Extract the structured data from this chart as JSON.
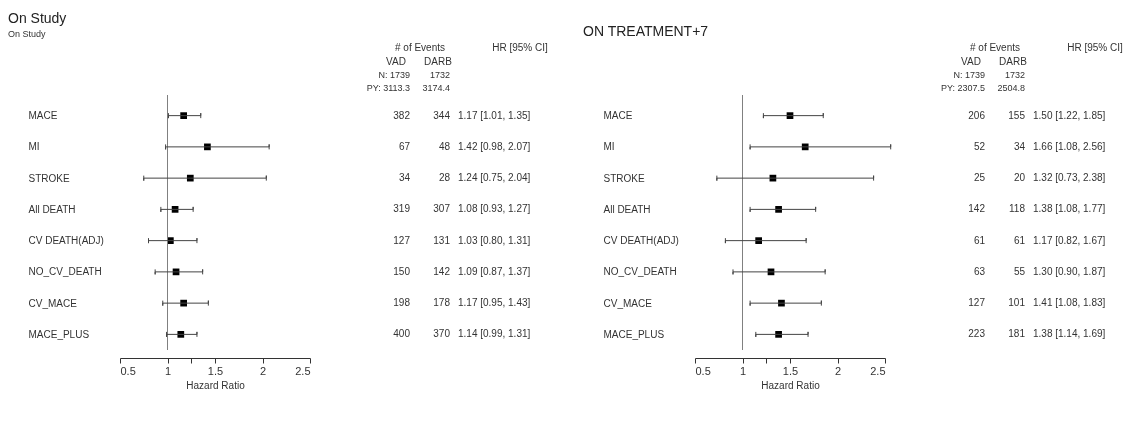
{
  "chart_data": [
    {
      "type": "scatter",
      "orientation": "horizontal",
      "title": "On Study",
      "subtitle": "On Study",
      "xlabel": "Hazard Ratio",
      "color": "#000000",
      "marker": "square",
      "categories": [
        "MACE",
        "MI",
        "STROKE",
        "All DEATH",
        "CV DEATH(ADJ)",
        "NO_CV_DEATH",
        "CV_MACE",
        "MACE_PLUS"
      ],
      "values": [
        1.17,
        1.42,
        1.24,
        1.08,
        1.03,
        1.09,
        1.17,
        1.14
      ],
      "errors": [
        [
          1.01,
          1.35
        ],
        [
          0.98,
          2.07
        ],
        [
          0.75,
          2.04
        ],
        [
          0.93,
          1.27
        ],
        [
          0.8,
          1.31
        ],
        [
          0.87,
          1.37
        ],
        [
          0.95,
          1.43
        ],
        [
          0.99,
          1.31
        ]
      ],
      "value_labels": [
        "1.17 [1.01, 1.35]",
        "1.42 [0.98, 2.07]",
        "1.24 [0.75, 2.04]",
        "1.08 [0.93, 1.27]",
        "1.03 [0.80, 1.31]",
        "1.09 [0.87, 1.37]",
        "1.17 [0.95, 1.43]",
        "1.14 [0.99, 1.31]"
      ],
      "xlim": [
        0.5,
        2.5
      ],
      "xticks": [
        0.5,
        1,
        {
          "value": 1.25,
          "label": null
        },
        1.5,
        2,
        2.5
      ],
      "ref_lines": [
        {
          "axis": "x",
          "value": 1,
          "color": "#808080"
        }
      ],
      "annotations": [
        "# of Events",
        "VAD",
        "DARB",
        "HR [95% CI]",
        "N: 1739",
        "1732",
        "PY: 3113.3",
        "3174.4",
        "382",
        "344",
        "67",
        "48",
        "34",
        "28",
        "319",
        "307",
        "127",
        "131",
        "150",
        "142",
        "198",
        "178",
        "400",
        "370"
      ]
    },
    {
      "type": "scatter",
      "orientation": "horizontal",
      "title": "ON TREATMENT+7",
      "xlabel": "Hazard Ratio",
      "color": "#000000",
      "marker": "square",
      "categories": [
        "MACE",
        "MI",
        "STROKE",
        "All DEATH",
        "CV DEATH(ADJ)",
        "NO_CV_DEATH",
        "CV_MACE",
        "MACE_PLUS"
      ],
      "values": [
        1.5,
        1.66,
        1.32,
        1.38,
        1.17,
        1.3,
        1.41,
        1.38
      ],
      "errors": [
        [
          1.22,
          1.85
        ],
        [
          1.08,
          2.56
        ],
        [
          0.73,
          2.38
        ],
        [
          1.08,
          1.77
        ],
        [
          0.82,
          1.67
        ],
        [
          0.9,
          1.87
        ],
        [
          1.08,
          1.83
        ],
        [
          1.14,
          1.69
        ]
      ],
      "value_labels": [
        "1.50 [1.22, 1.85]",
        "1.66 [1.08, 2.56]",
        "1.32 [0.73, 2.38]",
        "1.38 [1.08, 1.77]",
        "1.17 [0.82, 1.67]",
        "1.30 [0.90, 1.87]",
        "1.41 [1.08, 1.83]",
        "1.38 [1.14, 1.69]"
      ],
      "xlim": [
        0.5,
        2.5
      ],
      "xticks": [
        0.5,
        1,
        {
          "value": 1.25,
          "label": null
        },
        1.5,
        2,
        2.5
      ],
      "ref_lines": [
        {
          "axis": "x",
          "value": 1,
          "color": "#808080"
        }
      ],
      "annotations": [
        "# of Events",
        "VAD",
        "DARB",
        "HR [95% CI]",
        "N: 1739",
        "1732",
        "PY: 2307.5",
        "2504.8",
        "206",
        "155",
        "52",
        "34",
        "25",
        "20",
        "142",
        "118",
        "61",
        "61",
        "63",
        "55",
        "127",
        "101",
        "223",
        "181"
      ]
    }
  ]
}
